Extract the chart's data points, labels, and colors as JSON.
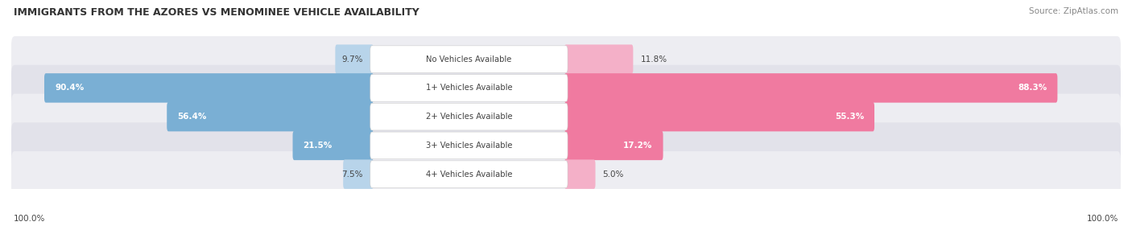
{
  "title": "IMMIGRANTS FROM THE AZORES VS MENOMINEE VEHICLE AVAILABILITY",
  "source": "Source: ZipAtlas.com",
  "categories": [
    "No Vehicles Available",
    "1+ Vehicles Available",
    "2+ Vehicles Available",
    "3+ Vehicles Available",
    "4+ Vehicles Available"
  ],
  "azores_values": [
    9.7,
    90.4,
    56.4,
    21.5,
    7.5
  ],
  "menominee_values": [
    11.8,
    88.3,
    55.3,
    17.2,
    5.0
  ],
  "azores_color": "#7aafd4",
  "menominee_color": "#f07aa0",
  "azores_color_light": "#b8d4ea",
  "menominee_color_light": "#f4b0c8",
  "row_bg_odd": "#ededf2",
  "row_bg_even": "#e2e2ea",
  "label_color_dark": "#444444",
  "label_color_white": "#ffffff",
  "title_color": "#333333",
  "source_color": "#888888",
  "figsize": [
    14.06,
    2.86
  ],
  "dpi": 100,
  "legend_azores": "Immigrants from the Azores",
  "legend_menominee": "Menominee",
  "inside_threshold": 15.0
}
